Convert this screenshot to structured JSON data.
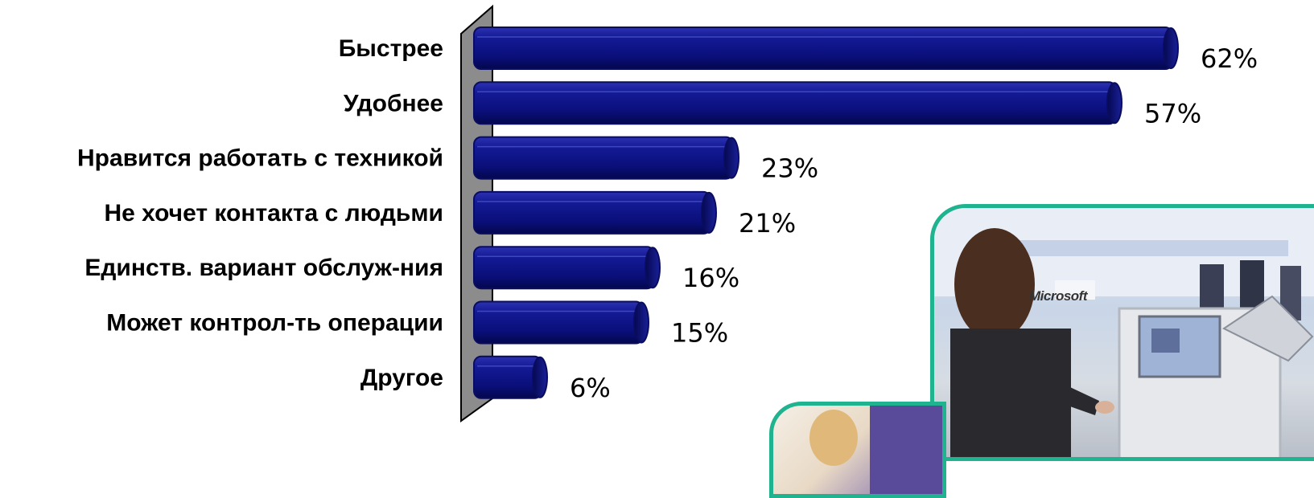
{
  "chart_data": {
    "type": "bar",
    "orientation": "horizontal",
    "style": "3d-cylinder",
    "categories": [
      "Быстрее",
      "Удобнее",
      "Нравится работать с техникой",
      "Не хочет контакта с людьми",
      "Единств. вариант обслуж-ния",
      "Может контрол-ть операции",
      "Другое"
    ],
    "values": [
      62,
      57,
      23,
      21,
      16,
      15,
      6
    ],
    "value_labels": [
      "62%",
      "57%",
      "23%",
      "21%",
      "16%",
      "15%",
      "6%"
    ],
    "xlim": [
      0,
      65
    ],
    "unit": "%",
    "bar_color": "#0b1080",
    "axis_wall_color": "#8c8c8c",
    "grid": false,
    "legend": "none"
  },
  "photos": {
    "main_sign_text": "Microsoft",
    "frame_color": "#1fb38f"
  }
}
